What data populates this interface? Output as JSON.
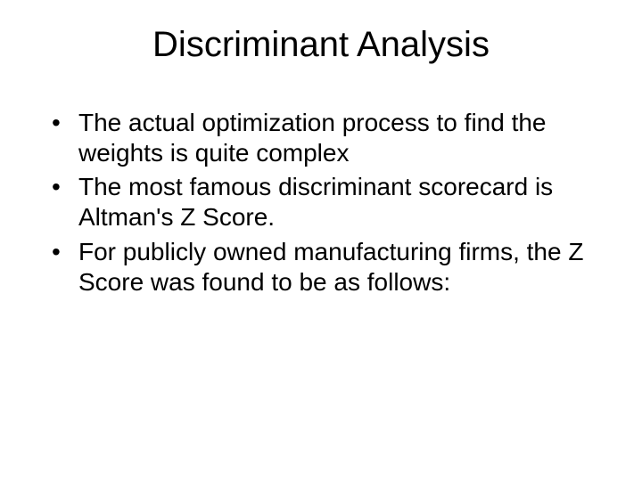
{
  "slide": {
    "title": "Discriminant Analysis",
    "bullets": [
      " The actual optimization process to find the weights is quite complex",
      "The most famous discriminant scorecard is Altman's Z Score.",
      "For publicly owned manufacturing firms, the Z Score was found to be as follows:"
    ]
  }
}
